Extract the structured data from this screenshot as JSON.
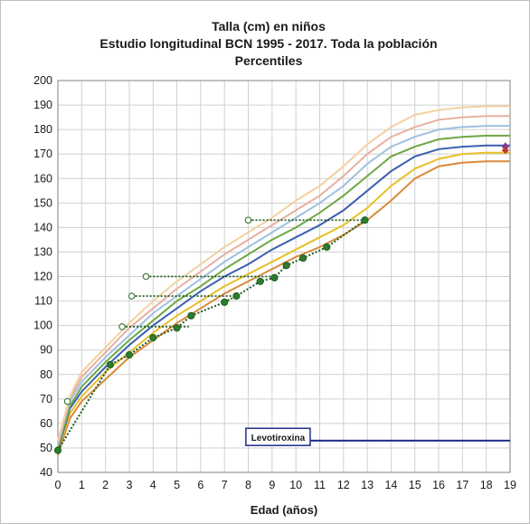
{
  "chart_data": {
    "type": "line",
    "title": "Talla (cm) en niños",
    "subtitle": "Estudio longitudinal BCN 1995 - 2017. Toda la población",
    "subtitle2": "Percentiles",
    "xlabel": "Edad (años)",
    "ylabel": "",
    "xlim": [
      0,
      19
    ],
    "ylim": [
      40,
      200
    ],
    "grid": true,
    "x_ticks": [
      0,
      1,
      2,
      3,
      4,
      5,
      6,
      7,
      8,
      9,
      10,
      11,
      12,
      13,
      14,
      15,
      16,
      17,
      18,
      19
    ],
    "y_ticks": [
      40,
      50,
      60,
      70,
      80,
      90,
      100,
      110,
      120,
      130,
      140,
      150,
      160,
      170,
      180,
      190,
      200
    ],
    "series": [
      {
        "color": "#d98a3a",
        "x": [
          0,
          0.5,
          1,
          2,
          3,
          4,
          5,
          6,
          7,
          8,
          9,
          10,
          11,
          12,
          13,
          14,
          15,
          16,
          17,
          18,
          19
        ],
        "values": [
          47,
          62,
          69,
          78,
          87,
          94,
          101,
          107,
          113,
          118,
          123,
          128,
          132,
          137,
          143,
          151,
          160,
          165,
          166.5,
          167,
          167
        ]
      },
      {
        "color": "#e8c02a",
        "x": [
          0,
          0.5,
          1,
          2,
          3,
          4,
          5,
          6,
          7,
          8,
          9,
          10,
          11,
          12,
          13,
          14,
          15,
          16,
          17,
          18,
          19
        ],
        "values": [
          48,
          64,
          71,
          81,
          89,
          97,
          104,
          110,
          116,
          121,
          126,
          131,
          136,
          141,
          148,
          157,
          164,
          168,
          170,
          170.5,
          170.5
        ]
      },
      {
        "color": "#3a5fb0",
        "x": [
          0,
          0.5,
          1,
          2,
          3,
          4,
          5,
          6,
          7,
          8,
          9,
          10,
          11,
          12,
          13,
          14,
          15,
          16,
          17,
          18,
          19
        ],
        "values": [
          49,
          66,
          73,
          83,
          92,
          100,
          107,
          114,
          120,
          125,
          131,
          136,
          141,
          147,
          155,
          163,
          169,
          172,
          173,
          173.5,
          173.5
        ]
      },
      {
        "color": "#6ea844",
        "x": [
          0,
          0.5,
          1,
          2,
          3,
          4,
          5,
          6,
          7,
          8,
          9,
          10,
          11,
          12,
          13,
          14,
          15,
          16,
          17,
          18,
          19
        ],
        "values": [
          50,
          67,
          75,
          85,
          94,
          102,
          110,
          116,
          123,
          129,
          135,
          140,
          146,
          153,
          161,
          169,
          173,
          176,
          177,
          177.5,
          177.5
        ]
      },
      {
        "color": "#9ec0e0",
        "x": [
          0,
          0.5,
          1,
          2,
          3,
          4,
          5,
          6,
          7,
          8,
          9,
          10,
          11,
          12,
          13,
          14,
          15,
          16,
          17,
          18,
          19
        ],
        "values": [
          51,
          69,
          77,
          87,
          96,
          105,
          112,
          119,
          126,
          132,
          138,
          144,
          150,
          157,
          166,
          173,
          177,
          180,
          181,
          181.5,
          181.5
        ]
      },
      {
        "color": "#e8b0a0",
        "x": [
          0,
          0.5,
          1,
          2,
          3,
          4,
          5,
          6,
          7,
          8,
          9,
          10,
          11,
          12,
          13,
          14,
          15,
          16,
          17,
          18,
          19
        ],
        "values": [
          52,
          70,
          79,
          89,
          99,
          107,
          115,
          122,
          129,
          135,
          141,
          147,
          153,
          161,
          170,
          177,
          181,
          184,
          185,
          185.5,
          185.5
        ]
      },
      {
        "color": "#f4d0a0",
        "x": [
          0,
          0.5,
          1,
          2,
          3,
          4,
          5,
          6,
          7,
          8,
          9,
          10,
          11,
          12,
          13,
          14,
          15,
          16,
          17,
          18,
          19
        ],
        "values": [
          53,
          71,
          81,
          91,
          101,
          110,
          118,
          125,
          132,
          138,
          144,
          151,
          157,
          165,
          174,
          181,
          186,
          188,
          189,
          189.5,
          189.5
        ]
      }
    ],
    "patient_filled": {
      "x": [
        0,
        2.2,
        3,
        4,
        5,
        5.6,
        7,
        7.5,
        8.5,
        9.1,
        9.6,
        10.3,
        11.3,
        12.9
      ],
      "values": [
        49,
        84,
        88,
        95,
        99,
        104,
        109.5,
        112,
        118,
        119.5,
        124.5,
        127.5,
        132,
        143
      ]
    },
    "patient_open": {
      "x": [
        0.4,
        2.7,
        3.1,
        3.7,
        8.0
      ],
      "values": [
        69,
        99.5,
        112,
        120,
        143
      ]
    },
    "patient_guides": [
      {
        "from": [
          2.7,
          99.5
        ],
        "to": [
          5.5,
          99.5
        ]
      },
      {
        "from": [
          3.1,
          112
        ],
        "to": [
          7.5,
          112
        ]
      },
      {
        "from": [
          3.7,
          120
        ],
        "to": [
          9.1,
          120
        ]
      },
      {
        "from": [
          8.0,
          143
        ],
        "to": [
          12.9,
          143
        ]
      }
    ],
    "final_markers": {
      "x": [
        18.8,
        18.8
      ],
      "values": [
        171.5,
        173
      ]
    },
    "annotation": {
      "label": "Levotiroxina",
      "line_from_x": 9.0,
      "line_to_x": 19,
      "line_y": 53,
      "box_x": [
        7.9,
        10.6
      ],
      "box_y": [
        58,
        51
      ]
    }
  }
}
